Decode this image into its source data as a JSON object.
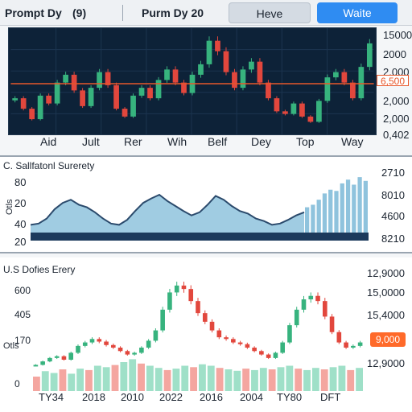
{
  "toolbar": {
    "label_left": "Prompt Dy",
    "label_paren": "(9)",
    "label_mid": "Purm Dy 20",
    "have_label": "Heve",
    "write_label": "Waite"
  },
  "colors": {
    "dark_bg": "#0d2238",
    "up": "#37b37e",
    "down": "#e2473d",
    "accent": "#2f8cf2",
    "price_line": "#e8572a",
    "area_fill": "#8fc3dd",
    "area_line": "#2b4a6c"
  },
  "panel1": {
    "y_ticks": [
      "15000",
      "2000",
      "2,000",
      "2,000",
      "2,000",
      "0,402"
    ],
    "x_ticks": [
      "Aid",
      "Jult",
      "Rer",
      "Wih",
      "Belf",
      "Dey",
      "Top",
      "Way"
    ],
    "price_tag": "6,500"
  },
  "panel2": {
    "title": "C. Sallfatonl Surerety",
    "side_label": "Otls",
    "y_left": [
      "80",
      "20",
      "40",
      "20"
    ],
    "y_right": [
      "2710",
      "8010",
      "4600",
      "8210"
    ]
  },
  "panel3": {
    "title": "U.S Dofies Erery",
    "side_label": "Otls",
    "y_left": [
      "600",
      "405",
      "170",
      "0"
    ],
    "y_right": [
      "12,9000",
      "15,0000",
      "15,4000",
      "12,9000"
    ],
    "x_ticks": [
      "TY34",
      "2018",
      "2010",
      "2022",
      "2016",
      "2004",
      "TY80",
      "DFT"
    ],
    "price_tag": "9,000"
  },
  "chart_data": [
    {
      "type": "candlestick",
      "x_labels": [
        "Aid",
        "Jult",
        "Rer",
        "Wih",
        "Belf",
        "Dey",
        "Top",
        "Way"
      ],
      "y_labels": [
        "15000",
        "2000",
        "2,000",
        "2,000",
        "2,000",
        "0,402"
      ],
      "price_line_label": "6,500",
      "close_values": [
        2.0,
        1.6,
        1.2,
        2.1,
        1.8,
        2.6,
        2.9,
        2.3,
        1.7,
        2.4,
        3.0,
        2.5,
        1.6,
        1.3,
        2.1,
        2.4,
        2.0,
        2.7,
        3.1,
        2.6,
        2.2,
        2.9,
        3.3,
        4.2,
        3.8,
        3.0,
        2.4,
        3.1,
        3.4,
        2.6,
        2.0,
        1.5,
        1.4,
        1.8,
        1.3,
        1.1,
        1.9,
        2.8,
        3.0,
        2.6,
        2.0,
        3.2,
        4.1
      ]
    },
    {
      "type": "area",
      "title": "C. Sallfatonl Surerety",
      "y_left_labels": [
        "80",
        "20",
        "40",
        "20"
      ],
      "y_right_labels": [
        "2710",
        "8010",
        "4600",
        "8210"
      ],
      "line_values": [
        20,
        22,
        30,
        45,
        55,
        60,
        52,
        48,
        40,
        30,
        22,
        20,
        28,
        42,
        55,
        62,
        68,
        58,
        50,
        42,
        35,
        40,
        52,
        66,
        60,
        50,
        42,
        38,
        30,
        26,
        20,
        22,
        28,
        35,
        40
      ],
      "bar_values": [
        48,
        52,
        60,
        70,
        76,
        74,
        86,
        92,
        84,
        96,
        90
      ]
    },
    {
      "type": "candlestick",
      "title": "U.S Dofies Erery",
      "x_labels": [
        "TY34",
        "2018",
        "2010",
        "2022",
        "2016",
        "2004",
        "TY80",
        "DFT"
      ],
      "y_left_labels": [
        "600",
        "405",
        "170",
        "0"
      ],
      "y_right_labels": [
        "12,9000",
        "15,0000",
        "15,4000",
        "12,9000"
      ],
      "price_tag": "9,000",
      "close_values": [
        100,
        120,
        140,
        150,
        130,
        170,
        210,
        230,
        250,
        235,
        215,
        200,
        180,
        160,
        170,
        200,
        240,
        300,
        420,
        520,
        560,
        540,
        470,
        400,
        350,
        300,
        260,
        250,
        230,
        220,
        200,
        180,
        160,
        140,
        170,
        230,
        330,
        420,
        480,
        500,
        470,
        380,
        290,
        230,
        200,
        210,
        230
      ],
      "volume_values": [
        40,
        55,
        50,
        60,
        48,
        62,
        58,
        70,
        66,
        72,
        80,
        88,
        76,
        70,
        64,
        58,
        62,
        70,
        66,
        74,
        70,
        64,
        60,
        56,
        62,
        58,
        64,
        60,
        66,
        70,
        62,
        58,
        64,
        60,
        66,
        70,
        58,
        64
      ]
    }
  ]
}
